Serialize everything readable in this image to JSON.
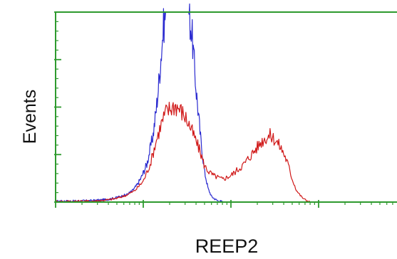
{
  "chart_data": {
    "type": "line",
    "title": "",
    "xlabel": "REEP2",
    "ylabel": "Events",
    "x_scale": "log",
    "xlim": [
      1,
      10000
    ],
    "ylim": [
      0,
      100
    ],
    "grid": false,
    "legend": "none",
    "colors": {
      "frame": "#2e9a2e",
      "axis": "#2e9a2e",
      "tick": "#2e9a2e",
      "series_control": "#2b2bd0",
      "series_sample": "#d01818"
    },
    "series": [
      {
        "color": "#2b2bd0",
        "x": [
          1.0,
          1.6,
          2.5,
          3.2,
          4.0,
          4.6,
          5.5,
          6.5,
          7.5,
          8.5,
          9.5,
          11,
          12,
          13,
          14,
          15,
          16,
          17,
          18,
          20,
          22,
          24,
          26,
          28,
          30,
          33,
          36,
          40,
          45,
          50,
          55,
          60,
          66,
          72,
          80
        ],
        "y": [
          0.5,
          0.5,
          0.7,
          1,
          1.5,
          2,
          3,
          4,
          6,
          9,
          13,
          20,
          28,
          36,
          48,
          62,
          78,
          92,
          100,
          100,
          100,
          100,
          100,
          100,
          100,
          100,
          88,
          60,
          34,
          16,
          7,
          3,
          1.5,
          0.6,
          0.2
        ]
      },
      {
        "color": "#d01818",
        "x": [
          1.0,
          1.6,
          2.5,
          3.2,
          4.0,
          5.0,
          6.3,
          8.0,
          10,
          12,
          14,
          16,
          18,
          20,
          23,
          26,
          30,
          34,
          40,
          45,
          50,
          56,
          63,
          71,
          80,
          90,
          100,
          112,
          126,
          141,
          158,
          178,
          200,
          224,
          251,
          282,
          316,
          355,
          398,
          447,
          501,
          562,
          631,
          708,
          794
        ],
        "y": [
          0.3,
          0.4,
          0.5,
          0.8,
          1.2,
          2,
          3.5,
          6,
          11,
          20,
          32,
          41,
          47,
          49,
          51,
          49,
          45,
          40,
          32,
          26,
          19,
          16,
          14,
          13,
          12,
          13,
          14,
          16,
          18,
          20,
          23,
          26,
          29,
          32,
          34,
          35,
          33,
          30,
          26,
          20,
          12,
          6,
          3,
          1,
          0.3
        ]
      }
    ]
  }
}
